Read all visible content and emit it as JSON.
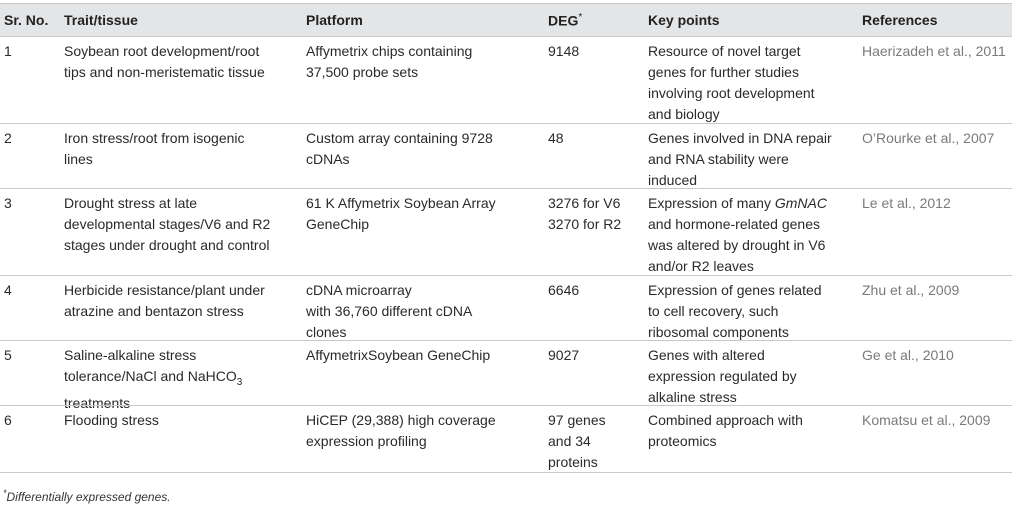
{
  "headers": {
    "sr_no": "Sr. No.",
    "trait": "Trait/tissue",
    "platform": "Platform",
    "deg": "DEG",
    "deg_mark": "*",
    "key_points": "Key points",
    "references": "References"
  },
  "rows": [
    {
      "sr": "1",
      "trait": [
        "Soybean root development/root",
        "tips and non-meristematic tissue"
      ],
      "platform": [
        "Affymetrix chips containing",
        "37,500 probe sets"
      ],
      "deg": [
        "9148"
      ],
      "key_points": [
        "Resource of novel target",
        "genes for further studies",
        "involving root development",
        "and biology"
      ],
      "reference": "Haerizadeh et al., 2011"
    },
    {
      "sr": "2",
      "trait": [
        "Iron stress/root from isogenic",
        "lines"
      ],
      "platform": [
        "Custom array containing 9728",
        "cDNAs"
      ],
      "deg": [
        "48"
      ],
      "key_points": [
        "Genes involved in DNA repair",
        "and RNA stability were",
        "induced"
      ],
      "reference": "O’Rourke et al., 2007"
    },
    {
      "sr": "3",
      "trait": [
        "Drought stress at late",
        "developmental stages/V6 and R2",
        "stages under drought and control"
      ],
      "platform": [
        "61 K Affymetrix Soybean Array",
        "GeneChip"
      ],
      "deg": [
        "3276 for V6",
        "3270 for R2"
      ],
      "key_points_pre": "Expression of many ",
      "key_points_gene": "GmNAC",
      "key_points_rest": [
        "and hormone-related genes",
        "was altered by drought in V6",
        "and/or R2 leaves"
      ],
      "reference": "Le et al., 2012"
    },
    {
      "sr": "4",
      "trait": [
        "Herbicide resistance/plant under",
        "atrazine and bentazon stress"
      ],
      "platform": [
        "cDNA microarray",
        "with 36,760 different cDNA",
        "clones"
      ],
      "deg": [
        "6646"
      ],
      "key_points": [
        "Expression of genes related",
        "to cell recovery, such",
        "ribosomal components"
      ],
      "reference": "Zhu et al., 2009"
    },
    {
      "sr": "5",
      "trait_l1": "Saline-alkaline stress",
      "trait_l2_pre": "tolerance/NaCl and NaHCO",
      "trait_l2_sub": "3",
      "trait_l3": "treatments",
      "platform": [
        "AffymetrixSoybean GeneChip"
      ],
      "deg": [
        "9027"
      ],
      "key_points": [
        "Genes with altered",
        "expression regulated by",
        "alkaline stress"
      ],
      "reference": "Ge et al., 2010"
    },
    {
      "sr": "6",
      "trait": [
        "Flooding stress"
      ],
      "platform": [
        "HiCEP (29,388) high coverage",
        "expression profiling"
      ],
      "deg": [
        "97 genes",
        "and 34",
        "proteins"
      ],
      "key_points": [
        "Combined approach with",
        "proteomics"
      ],
      "reference": "Komatsu et al., 2009"
    }
  ],
  "footnote": {
    "mark": "*",
    "text": "Differentially expressed genes."
  }
}
